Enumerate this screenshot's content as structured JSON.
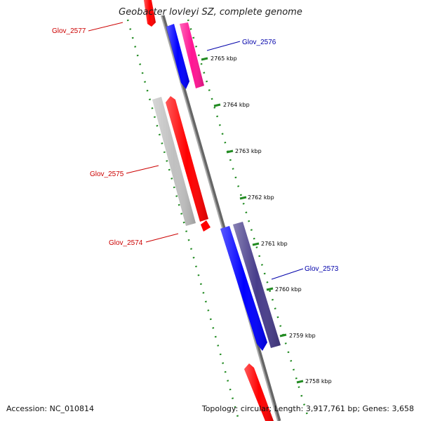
{
  "title": "Geobacter lovleyi SZ, complete genome",
  "footer": {
    "accession": "Accession: NC_010814",
    "summary": "Topology: circular; Length: 3,917,761 bp; Genes: 3,658"
  },
  "ticks": [
    "2765 kbp",
    "2764 kbp",
    "2763 kbp",
    "2762 kbp",
    "2761 kbp",
    "2760 kbp",
    "2759 kbp",
    "2758 kbp"
  ],
  "genes": [
    {
      "label": "Glov_2577",
      "label_color": "#cc0000",
      "fill": "#ff0000"
    },
    {
      "label": "Glov_2576",
      "label_color": "#0000aa",
      "fill": "#ff1493"
    },
    {
      "label": "Glov_2575",
      "label_color": "#cc0000",
      "fill": "#c0c0c0"
    },
    {
      "label": "Glov_2574",
      "label_color": "#cc0000",
      "fill": "#ff0000"
    },
    {
      "label": "Glov_2573",
      "label_color": "#0000aa",
      "fill": "#483d8b"
    }
  ],
  "colors": {
    "backbone": "#888888",
    "tick_mark": "#228b22",
    "forward_blue": "#0000ff",
    "reverse_red": "#ff0000"
  }
}
